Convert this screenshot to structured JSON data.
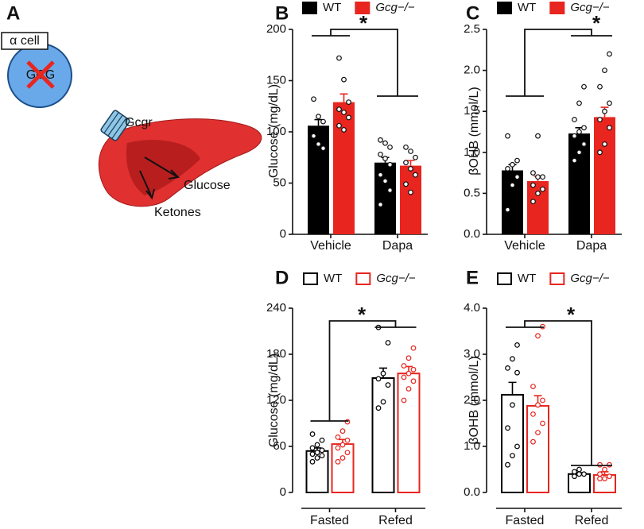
{
  "diagram": {
    "panel": "A",
    "cell": "α cell",
    "gene": "GCG",
    "receptor": "Gcgr",
    "glucose": "Glucose",
    "ketones": "Ketones"
  },
  "chart_data": [
    {
      "type": "bar",
      "panel": "B",
      "ylabel": "Glucose (mg/dL)",
      "categories": [
        "Vehicle",
        "Dapa"
      ],
      "ylim": [
        0,
        200
      ],
      "yticks": [
        0,
        50,
        100,
        150,
        200
      ],
      "fill": "solid",
      "annotation": "*",
      "series": [
        {
          "name": "WT",
          "color": "#000000",
          "values": [
            106,
            70
          ],
          "errors": [
            6,
            5
          ],
          "points": [
            [
              132,
              115,
              110,
              96,
              88,
              84
            ],
            [
              92,
              89,
              85,
              78,
              74,
              68,
              58,
              52,
              43,
              29
            ]
          ]
        },
        {
          "name": "Gcg−/−",
          "color": "#e8251f",
          "values": [
            129,
            67
          ],
          "errors": [
            8,
            5
          ],
          "points": [
            [
              172,
              151,
              129,
              122,
              119,
              114,
              106,
              102
            ],
            [
              85,
              81,
              75,
              70,
              64,
              58,
              49,
              41
            ]
          ]
        }
      ]
    },
    {
      "type": "bar",
      "panel": "C",
      "ylabel": "βOHB (mmol/L)",
      "categories": [
        "Vehicle",
        "Dapa"
      ],
      "ylim": [
        0,
        2.5
      ],
      "yticks": [
        {
          "value": 0,
          "label": "0.0"
        },
        0.5,
        {
          "value": 1,
          "label": "1.0"
        },
        1.5,
        {
          "value": 2,
          "label": "2.0"
        },
        2.5
      ],
      "fill": "solid",
      "annotation": "*",
      "series": [
        {
          "name": "WT",
          "color": "#000000",
          "values": [
            0.78,
            1.23
          ],
          "errors": [
            0.07,
            0.07
          ],
          "points": [
            [
              0.3,
              0.6,
              0.7,
              0.8,
              0.85,
              0.9,
              1.2
            ],
            [
              0.9,
              1.0,
              1.1,
              1.2,
              1.25,
              1.3,
              1.4,
              1.6,
              1.8
            ]
          ]
        },
        {
          "name": "Gcg−/−",
          "color": "#e8251f",
          "values": [
            0.65,
            1.43
          ],
          "errors": [
            0.06,
            0.12
          ],
          "points": [
            [
              0.4,
              0.5,
              0.55,
              0.6,
              0.7,
              0.7,
              0.75,
              1.2
            ],
            [
              1.0,
              1.1,
              1.3,
              1.4,
              1.5,
              1.6,
              1.8,
              2.0,
              2.2
            ]
          ]
        }
      ]
    },
    {
      "type": "bar",
      "panel": "D",
      "ylabel": "Glucose (mg/dL)",
      "categories": [
        "Fasted",
        "Refed"
      ],
      "ylim": [
        0,
        240
      ],
      "yticks": [
        0,
        60,
        120,
        180,
        240
      ],
      "fill": "open",
      "annotation": "*",
      "series": [
        {
          "name": "WT",
          "color": "#000000",
          "values": [
            54,
            149
          ],
          "errors": [
            4,
            13
          ],
          "points": [
            [
              40,
              45,
              48,
              50,
              52,
              55,
              58,
              62,
              68,
              76
            ],
            [
              110,
              118,
              140,
              148,
              155,
              195,
              215
            ]
          ]
        },
        {
          "name": "Gcg−/−",
          "color": "#e8251f",
          "values": [
            63,
            155
          ],
          "errors": [
            6,
            9
          ],
          "points": [
            [
              40,
              45,
              52,
              58,
              62,
              68,
              72,
              80,
              92
            ],
            [
              120,
              135,
              145,
              150,
              155,
              160,
              165,
              175,
              188
            ]
          ]
        }
      ]
    },
    {
      "type": "bar",
      "panel": "E",
      "ylabel": "βOHB (mmol/L)",
      "categories": [
        "Fasted",
        "Refed"
      ],
      "ylim": [
        0,
        4
      ],
      "yticks": [
        {
          "value": 0,
          "label": "0.0"
        },
        {
          "value": 1,
          "label": "1.0"
        },
        {
          "value": 2,
          "label": "2.0"
        },
        {
          "value": 3,
          "label": "3.0"
        },
        {
          "value": 4,
          "label": "4.0"
        }
      ],
      "fill": "open",
      "annotation": "*",
      "series": [
        {
          "name": "WT",
          "color": "#000000",
          "values": [
            2.12,
            0.4
          ],
          "errors": [
            0.27,
            0.03
          ],
          "points": [
            [
              0.6,
              0.8,
              1.0,
              1.4,
              1.9,
              2.6,
              2.7,
              2.9,
              3.2
            ],
            [
              0.35,
              0.4,
              0.4,
              0.45,
              0.5
            ]
          ]
        },
        {
          "name": "Gcg−/−",
          "color": "#e8251f",
          "values": [
            1.88,
            0.38
          ],
          "errors": [
            0.22,
            0.07
          ],
          "points": [
            [
              1.1,
              1.3,
              1.5,
              1.7,
              1.9,
              2.0,
              2.3,
              3.4,
              3.6
            ],
            [
              0.3,
              0.3,
              0.35,
              0.4,
              0.5,
              0.6,
              0.6
            ]
          ]
        }
      ]
    }
  ]
}
